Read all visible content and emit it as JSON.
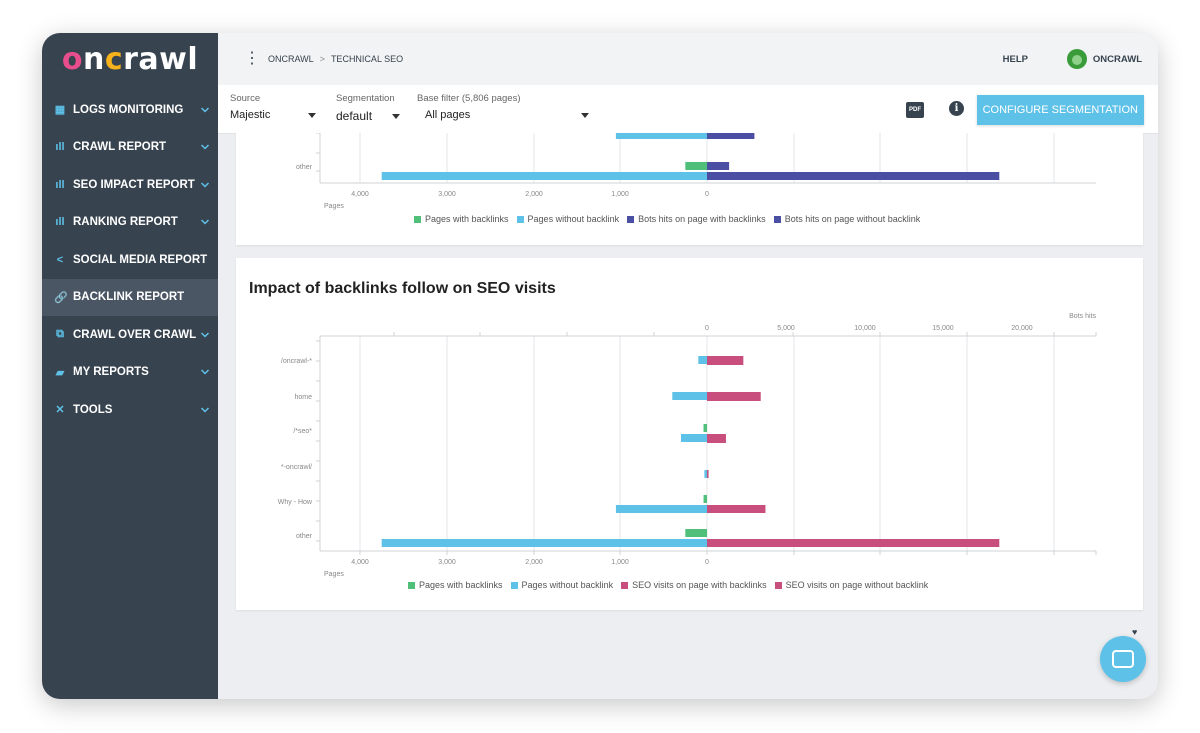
{
  "brand": {
    "logo_text": "oncrawl"
  },
  "sidebar": {
    "items": [
      {
        "label": "LOGS MONITORING",
        "icon": "calendar-icon",
        "glyph": "▦",
        "chevron": true,
        "active": false
      },
      {
        "label": "CRAWL REPORT",
        "icon": "bar-chart-icon",
        "glyph": "ıll",
        "chevron": true,
        "active": false
      },
      {
        "label": "SEO IMPACT REPORT",
        "icon": "bar-chart-icon",
        "glyph": "ıll",
        "chevron": true,
        "active": false
      },
      {
        "label": "RANKING REPORT",
        "icon": "bar-chart-icon",
        "glyph": "ıll",
        "chevron": true,
        "active": false
      },
      {
        "label": "SOCIAL MEDIA REPORT",
        "icon": "share-icon",
        "glyph": "<",
        "chevron": false,
        "active": false
      },
      {
        "label": "BACKLINK REPORT",
        "icon": "link-icon",
        "glyph": "🔗",
        "chevron": false,
        "active": true
      },
      {
        "label": "CRAWL OVER CRAWL",
        "icon": "compare-icon",
        "glyph": "⧉",
        "chevron": true,
        "active": false
      },
      {
        "label": "MY REPORTS",
        "icon": "folder-icon",
        "glyph": "▰",
        "chevron": true,
        "active": false
      },
      {
        "label": "TOOLS",
        "icon": "tools-icon",
        "glyph": "✕",
        "chevron": true,
        "active": false
      }
    ]
  },
  "topbar": {
    "breadcrumb": [
      "ONCRAWL",
      "TECHNICAL SEO"
    ],
    "breadcrumb_separator": ">",
    "help": "HELP",
    "user": "ONCRAWL"
  },
  "filters": {
    "source": {
      "label": "Source",
      "value": "Majestic"
    },
    "segmentation": {
      "label": "Segmentation",
      "value": "default"
    },
    "base_filter": {
      "label": "Base filter (5,806 pages)",
      "value": "All pages"
    },
    "pdf_label": "PDF",
    "info_label": "i",
    "configure_button": "CONFIGURE SEGMENTATION"
  },
  "chart_data": [
    {
      "type": "bar",
      "title": "",
      "partial": true,
      "categories": [
        "other"
      ],
      "left_axis": {
        "label": "Pages",
        "ticks": [
          "4,000",
          "3,000",
          "2,000",
          "1,000",
          "0"
        ]
      },
      "series": [
        {
          "name": "Pages with backlinks",
          "color": "#4fbf7a",
          "side": "left",
          "values": [
            250
          ]
        },
        {
          "name": "Pages without backlink",
          "color": "#5ec1e8",
          "side": "left",
          "values": [
            3750
          ]
        },
        {
          "name": "Bots hits on page with backlinks",
          "color": "#4a4fa3",
          "side": "right",
          "values": [
            1400
          ]
        },
        {
          "name": "Bots hits on page without backlink",
          "color": "#4a4fa3",
          "side": "right",
          "values": [
            18500
          ]
        }
      ],
      "cutoff_row": {
        "left_value": 1050,
        "right_value": 3000
      }
    },
    {
      "type": "bar",
      "title": "Impact of backlinks follow on SEO visits",
      "categories": [
        "/oncrawl-*",
        "home",
        "/*seo*",
        "*-oncrawl/",
        "Why - How",
        "other"
      ],
      "left_axis": {
        "label": "Pages",
        "ticks": [
          "4,000",
          "3,000",
          "2,000",
          "1,000",
          "0"
        ],
        "max": 4500
      },
      "right_axis": {
        "label": "Bots hits",
        "ticks": [
          "0",
          "5,000",
          "10,000",
          "15,000",
          "20,000"
        ],
        "max": 22500
      },
      "series": [
        {
          "name": "Pages with backlinks",
          "color": "#4fbf7a",
          "side": "left",
          "values": [
            0,
            0,
            40,
            0,
            40,
            250
          ]
        },
        {
          "name": "Pages without backlink",
          "color": "#5ec1e8",
          "side": "left",
          "values": [
            100,
            400,
            300,
            30,
            1050,
            3750
          ]
        },
        {
          "name": "SEO visits on page with backlinks",
          "color": "#c84f7d",
          "side": "right",
          "values": [
            2300,
            3400,
            1200,
            0,
            0,
            0
          ]
        },
        {
          "name": "SEO visits on page without backlink",
          "color": "#c84f7d",
          "side": "right",
          "values": [
            0,
            0,
            0,
            100,
            3700,
            18500
          ]
        }
      ]
    }
  ]
}
